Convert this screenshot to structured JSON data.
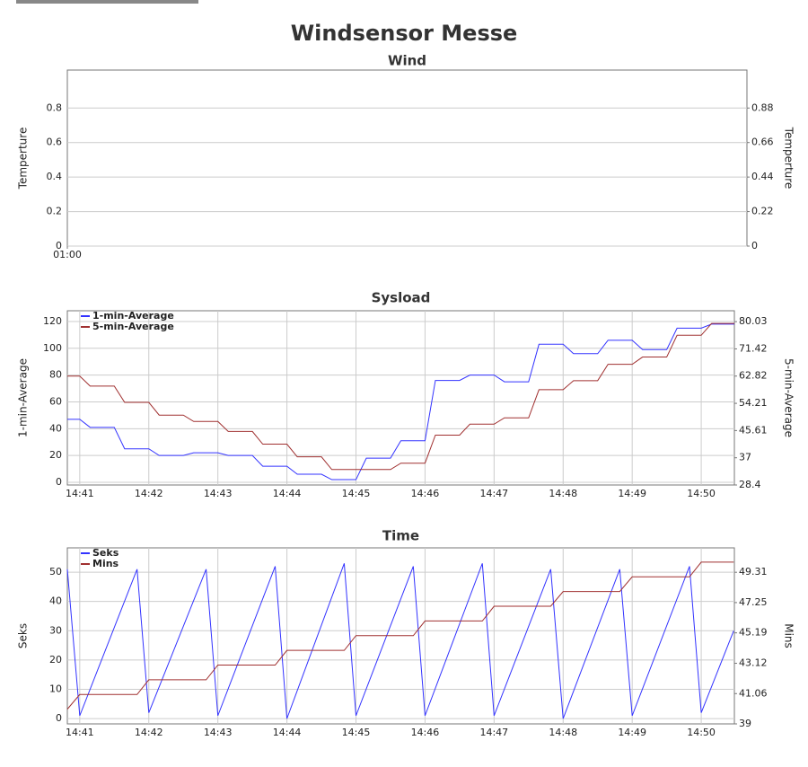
{
  "title": "Windsensor Messe",
  "chart_data": [
    {
      "type": "line",
      "title": "Wind",
      "y_label": "Temperture",
      "y2_label": "Temperture",
      "ylabel_color": "#3333ff",
      "y2label_color": "#a03030",
      "xlim": [
        60,
        70
      ],
      "xticks": [
        {
          "value": 60,
          "label": "01:00"
        }
      ],
      "ylim": [
        0,
        1.02
      ],
      "yticks": [
        0,
        0.2,
        0.4,
        0.6,
        0.8
      ],
      "y2lim": [
        0,
        1.122
      ],
      "y2ticks": [
        0,
        0.22,
        0.44,
        0.66,
        0.88
      ],
      "grid": "y",
      "legend": "top-left",
      "x": [],
      "series": []
    },
    {
      "type": "line",
      "title": "Sysload",
      "y_label": "1-min-Average",
      "y2_label": "5-min-Average",
      "ylabel_color": "#3333ff",
      "y2label_color": "#a03030",
      "xlim": [
        880.82,
        890.48
      ],
      "xticks": [
        {
          "value": 881,
          "label": "14:41"
        },
        {
          "value": 882,
          "label": "14:42"
        },
        {
          "value": 883,
          "label": "14:43"
        },
        {
          "value": 884,
          "label": "14:44"
        },
        {
          "value": 885,
          "label": "14:45"
        },
        {
          "value": 886,
          "label": "14:46"
        },
        {
          "value": 887,
          "label": "14:47"
        },
        {
          "value": 888,
          "label": "14:48"
        },
        {
          "value": 889,
          "label": "14:49"
        },
        {
          "value": 890,
          "label": "14:50"
        }
      ],
      "ylim": [
        -2,
        128
      ],
      "yticks": [
        0,
        20,
        40,
        60,
        80,
        100,
        120
      ],
      "y2lim": [
        28.4,
        83.47
      ],
      "y2ticks": [
        28.4,
        37,
        45.61,
        54.21,
        62.82,
        71.42,
        80.03
      ],
      "grid": "both",
      "legend": "top-left",
      "x": [
        880.82,
        881,
        881.15,
        881.5,
        881.65,
        882,
        882.15,
        882.5,
        882.65,
        883,
        883.15,
        883.5,
        883.65,
        884,
        884.15,
        884.5,
        884.65,
        885,
        885.15,
        885.5,
        885.65,
        886,
        886.15,
        886.5,
        886.65,
        887,
        887.15,
        887.5,
        887.65,
        888,
        888.15,
        888.5,
        888.65,
        889,
        889.15,
        889.5,
        889.65,
        890,
        890.15,
        890.48
      ],
      "series": [
        {
          "name": "1-min-Average",
          "color": "#3333ff",
          "values": [
            47,
            47,
            41,
            41,
            25,
            25,
            20,
            20,
            22,
            22,
            20,
            20,
            12,
            12,
            6,
            6,
            2,
            2,
            18,
            18,
            31,
            31,
            76,
            76,
            80,
            80,
            75,
            75,
            103,
            103,
            96,
            96,
            106,
            106,
            99,
            99,
            115,
            115,
            118,
            118
          ]
        },
        {
          "name": "5-min-Average",
          "color": "#a03030",
          "axis": "y2",
          "values": [
            62.82,
            62.82,
            59.66,
            59.66,
            54.5,
            54.5,
            50.48,
            50.48,
            48.48,
            48.48,
            45.32,
            45.32,
            41.31,
            41.31,
            37.29,
            37.29,
            33.28,
            33.28,
            33.28,
            33.28,
            35.28,
            35.28,
            44.17,
            44.17,
            47.62,
            47.62,
            49.62,
            49.62,
            58.51,
            58.51,
            61.38,
            61.38,
            66.54,
            66.54,
            68.84,
            68.84,
            75.72,
            75.72,
            79.45,
            79.45
          ]
        }
      ]
    },
    {
      "type": "line",
      "title": "Time",
      "y_label": "Seks",
      "y2_label": "Mins",
      "ylabel_color": "#3333ff",
      "y2label_color": "#a03030",
      "xlim": [
        880.82,
        890.48
      ],
      "xticks": [
        {
          "value": 881,
          "label": "14:41"
        },
        {
          "value": 882,
          "label": "14:42"
        },
        {
          "value": 883,
          "label": "14:43"
        },
        {
          "value": 884,
          "label": "14:44"
        },
        {
          "value": 885,
          "label": "14:45"
        },
        {
          "value": 886,
          "label": "14:46"
        },
        {
          "value": 887,
          "label": "14:47"
        },
        {
          "value": 888,
          "label": "14:48"
        },
        {
          "value": 889,
          "label": "14:49"
        },
        {
          "value": 890,
          "label": "14:50"
        }
      ],
      "ylim": [
        -1.8,
        58.3
      ],
      "yticks": [
        0,
        10,
        20,
        30,
        40,
        50
      ],
      "y2lim": [
        39,
        50.97
      ],
      "y2ticks": [
        39,
        41.06,
        43.12,
        45.19,
        47.25,
        49.31
      ],
      "grid": "both",
      "legend": "top-left",
      "x": [
        880.82,
        881,
        881.83,
        882,
        882.83,
        883,
        883.83,
        884,
        884.83,
        885,
        885.83,
        886,
        886.83,
        887,
        887.82,
        888,
        888.82,
        889,
        889.83,
        890,
        890.47
      ],
      "series": [
        {
          "name": "Seks",
          "color": "#3333ff",
          "values": [
            51,
            1,
            51,
            2,
            51,
            1,
            52,
            0,
            53,
            1,
            52,
            1,
            53,
            1,
            51,
            0,
            51,
            1,
            52,
            2,
            30
          ]
        },
        {
          "name": "Mins",
          "color": "#a03030",
          "axis": "y2",
          "values": [
            40,
            41,
            41,
            42,
            42,
            43,
            43,
            44,
            44,
            45,
            45,
            46,
            46,
            47,
            47,
            48,
            48,
            49,
            49,
            50,
            50
          ]
        }
      ]
    }
  ]
}
